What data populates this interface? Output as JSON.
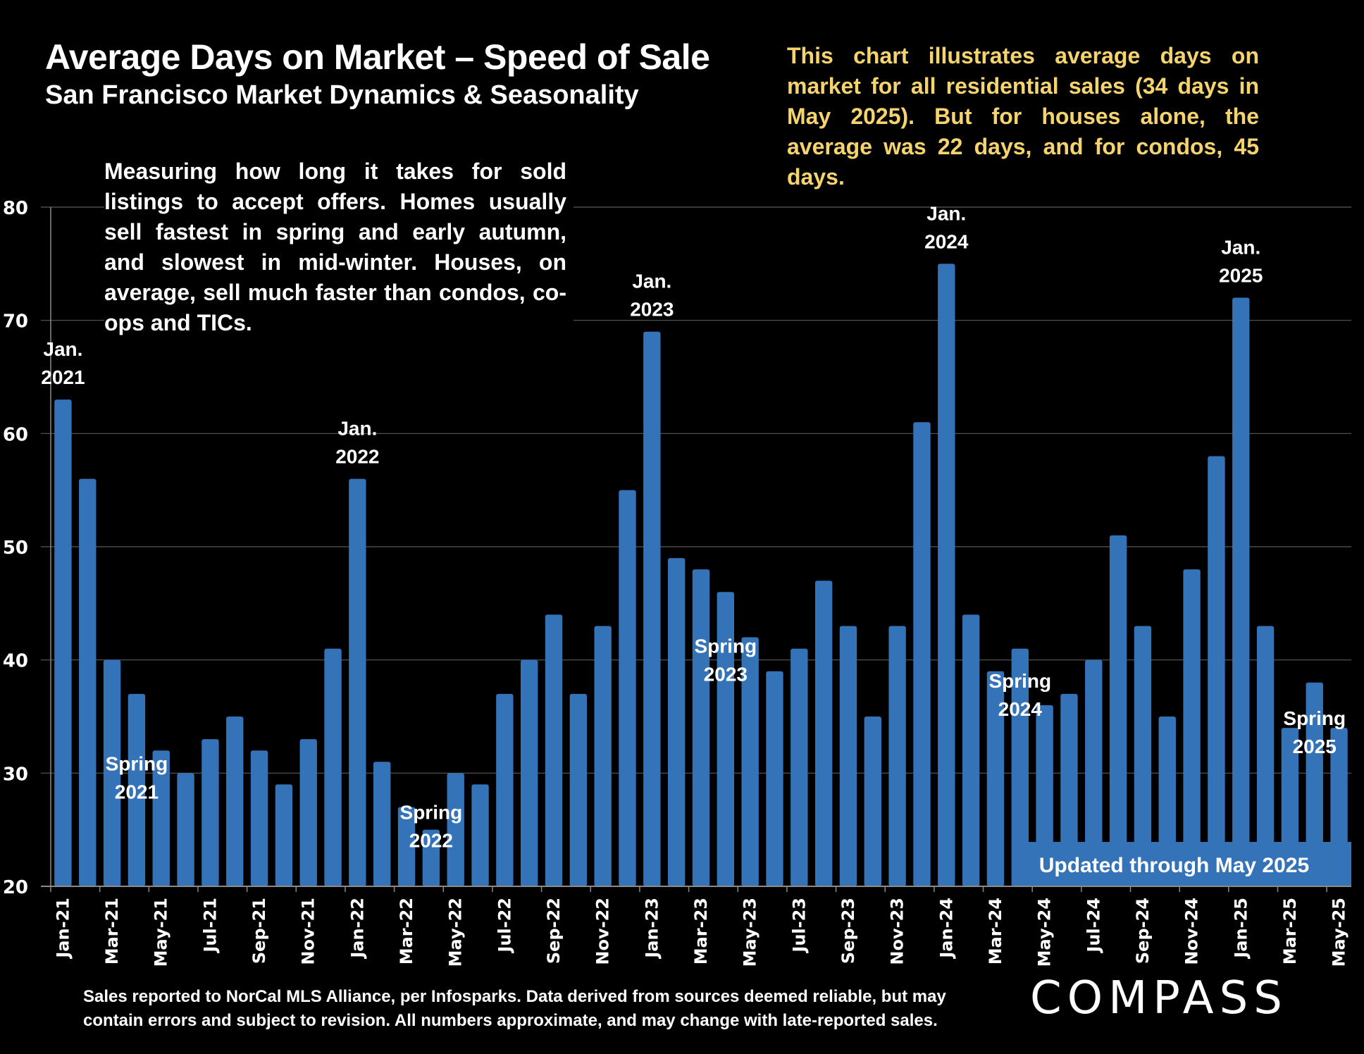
{
  "header": {
    "title": "Average Days on Market – Speed of Sale",
    "subtitle": "San Francisco Market Dynamics & Seasonality"
  },
  "notes": {
    "highlight": "This chart illustrates average days on market for all residential sales (34 days in May 2025). But for houses alone, the average was 22 days, and for condos, 45 days.",
    "description": "Measuring how long it takes for sold listings to accept offers. Homes usually sell fastest in spring and early autumn, and slowest in mid-winter. Houses, on average, sell much faster than condos, co-ops and TICs."
  },
  "footer": {
    "line1": "Sales reported to NorCal MLS Alliance, per Infosparks. Data derived from sources deemed reliable, but may",
    "line2": "contain errors and subject to revision. All numbers approximate, and may change with late-reported sales."
  },
  "brand": {
    "logo_text": "COMPASS"
  },
  "colors": {
    "bar": "#3473b8",
    "highlight_text": "#f5d46e",
    "background": "#000000",
    "grid": "#5a5a5a"
  },
  "chart_data": {
    "type": "bar",
    "title": "Average Days on Market – Speed of Sale",
    "xlabel": "",
    "ylabel": "",
    "ylim": [
      20,
      80
    ],
    "yticks": [
      20,
      30,
      40,
      50,
      60,
      70,
      80
    ],
    "grid": true,
    "categories": [
      "Jan-21",
      "Feb-21",
      "Mar-21",
      "Apr-21",
      "May-21",
      "Jun-21",
      "Jul-21",
      "Aug-21",
      "Sep-21",
      "Oct-21",
      "Nov-21",
      "Dec-21",
      "Jan-22",
      "Feb-22",
      "Mar-22",
      "Apr-22",
      "May-22",
      "Jun-22",
      "Jul-22",
      "Aug-22",
      "Sep-22",
      "Oct-22",
      "Nov-22",
      "Dec-22",
      "Jan-23",
      "Feb-23",
      "Mar-23",
      "Apr-23",
      "May-23",
      "Jun-23",
      "Jul-23",
      "Aug-23",
      "Sep-23",
      "Oct-23",
      "Nov-23",
      "Dec-23",
      "Jan-24",
      "Feb-24",
      "Mar-24",
      "Apr-24",
      "May-24",
      "Jun-24",
      "Jul-24",
      "Aug-24",
      "Sep-24",
      "Oct-24",
      "Nov-24",
      "Dec-24",
      "Jan-25",
      "Feb-25",
      "Mar-25",
      "Apr-25",
      "May-25"
    ],
    "values": [
      63,
      56,
      40,
      37,
      32,
      30,
      33,
      35,
      32,
      29,
      33,
      41,
      56,
      31,
      27,
      25,
      30,
      29,
      37,
      40,
      44,
      37,
      43,
      55,
      69,
      49,
      48,
      46,
      42,
      39,
      41,
      47,
      43,
      35,
      43,
      61,
      75,
      44,
      39,
      41,
      36,
      37,
      40,
      51,
      43,
      35,
      48,
      58,
      72,
      43,
      34,
      38,
      34
    ],
    "xtick_labels": [
      "Jan-21",
      "Mar-21",
      "May-21",
      "Jul-21",
      "Sep-21",
      "Nov-21",
      "Jan-22",
      "Mar-22",
      "May-22",
      "Jul-22",
      "Sep-22",
      "Nov-22",
      "Jan-23",
      "Mar-23",
      "May-23",
      "Jul-23",
      "Sep-23",
      "Nov-23",
      "Jan-24",
      "Mar-24",
      "May-24",
      "Jul-24",
      "Sep-24",
      "Nov-24",
      "Jan-25",
      "Mar-25",
      "May-25"
    ],
    "annotations": [
      {
        "lines": [
          "Jan.",
          "2021"
        ],
        "category": "Jan-21",
        "position": "above"
      },
      {
        "lines": [
          "Jan.",
          "2022"
        ],
        "category": "Jan-22",
        "position": "above"
      },
      {
        "lines": [
          "Jan.",
          "2023"
        ],
        "category": "Jan-23",
        "position": "above"
      },
      {
        "lines": [
          "Jan.",
          "2024"
        ],
        "category": "Jan-24",
        "position": "above"
      },
      {
        "lines": [
          "Jan.",
          "2025"
        ],
        "category": "Jan-25",
        "position": "above"
      },
      {
        "lines": [
          "Spring",
          "2021"
        ],
        "category": "Apr-21",
        "position": "inside",
        "y_value": 29
      },
      {
        "lines": [
          "Spring",
          "2022"
        ],
        "category": "Apr-22",
        "position": "inside",
        "y_value": 24.7
      },
      {
        "lines": [
          "Spring",
          "2023"
        ],
        "category": "Apr-23",
        "position": "inside",
        "y_value": 39.4
      },
      {
        "lines": [
          "Spring",
          "2024"
        ],
        "category": "Apr-24",
        "position": "inside",
        "y_value": 36.3
      },
      {
        "lines": [
          "Spring",
          "2025"
        ],
        "category": "Apr-25",
        "position": "inside",
        "y_value": 33
      }
    ],
    "banner": "Updated through May 2025",
    "legend": "none"
  }
}
